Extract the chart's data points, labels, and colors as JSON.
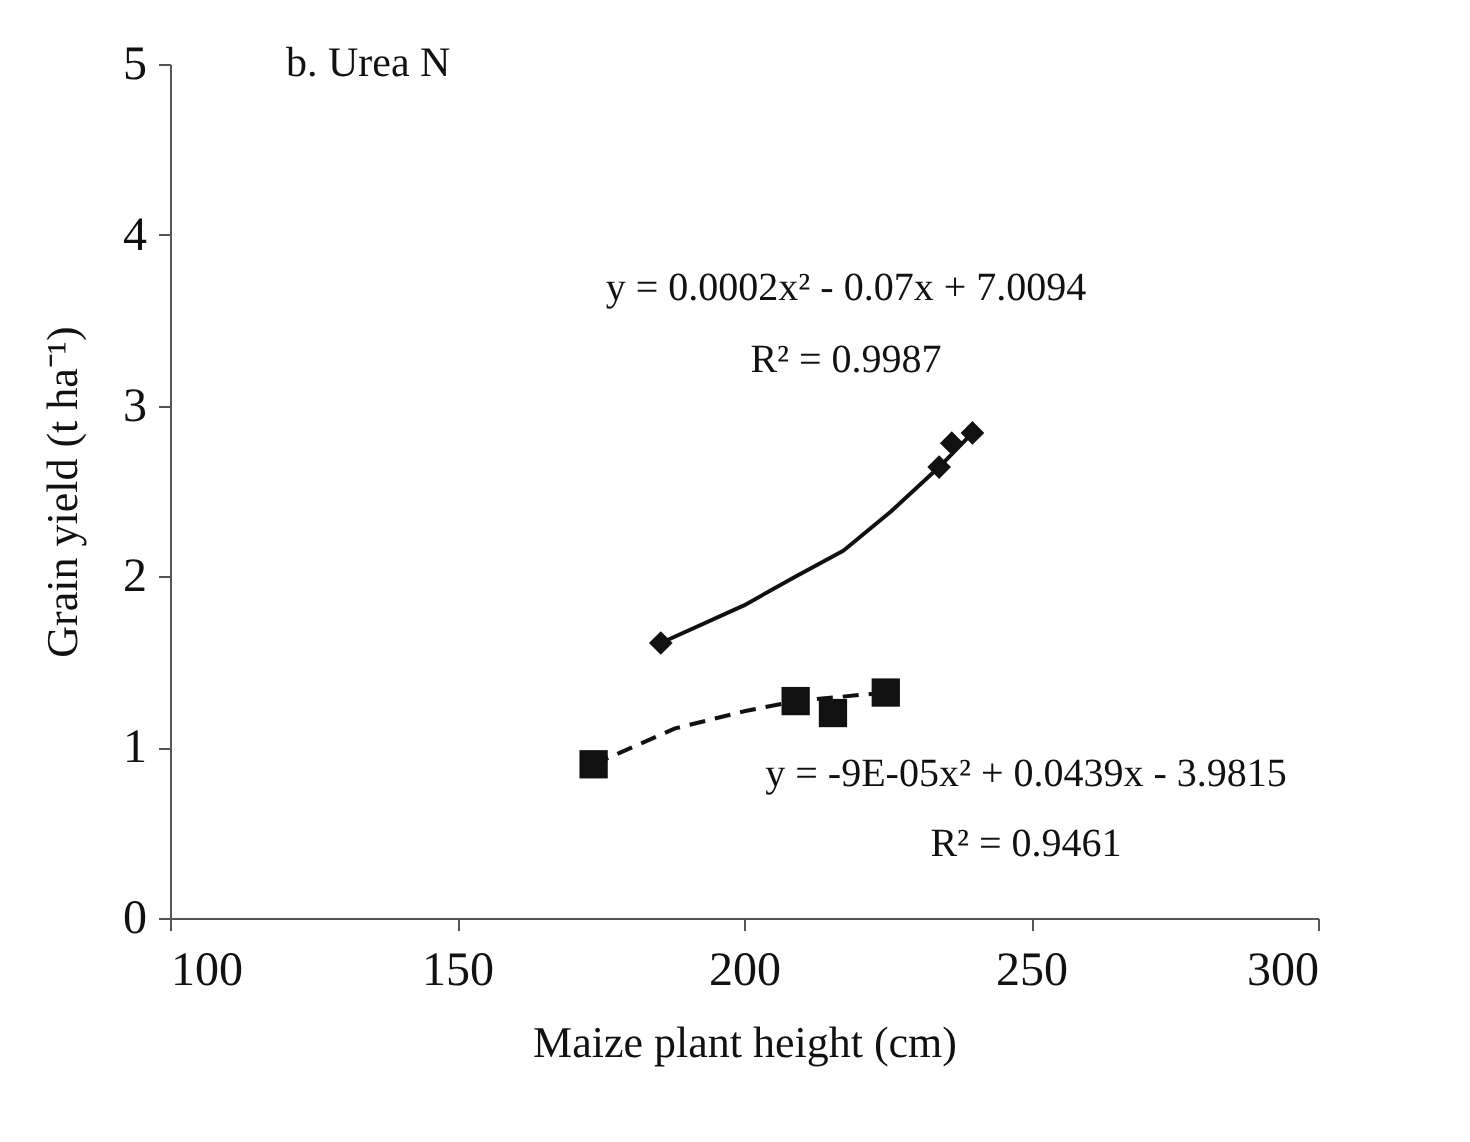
{
  "chart_data": {
    "type": "scatter",
    "title": "b. Urea N",
    "xlabel": "Maize plant height (cm)",
    "ylabel": "Grain yield (t ha⁻¹)",
    "xlim": [
      100,
      300
    ],
    "xticks": [
      100,
      150,
      200,
      250,
      300
    ],
    "ylim": [
      0,
      5
    ],
    "yticks": [
      0,
      1,
      2,
      3,
      4,
      5
    ],
    "series": [
      {
        "marker": "diamond",
        "color": "#111111",
        "x": [
          185.5,
          234,
          236.2,
          239.8
        ],
        "values": [
          1.61,
          2.64,
          2.78,
          2.84
        ]
      },
      {
        "marker": "square",
        "color": "#111111",
        "x": [
          173.8,
          209,
          215.5,
          224.7
        ],
        "values": [
          0.9,
          1.27,
          1.2,
          1.32
        ]
      },
      {
        "type": "line",
        "line_style": "solid",
        "marker": "none",
        "color": "#111111",
        "x": [
          185.5,
          200,
          209,
          217.3,
          225.6,
          234,
          239.8
        ],
        "values": [
          1.61,
          1.83,
          2.0,
          2.15,
          2.38,
          2.64,
          2.84
        ]
      },
      {
        "type": "line",
        "line_style": "dashed",
        "marker": "none",
        "color": "#111111",
        "x": [
          173.8,
          188,
          200,
          209,
          224.7
        ],
        "values": [
          0.9,
          1.11,
          1.21,
          1.27,
          1.32
        ]
      }
    ],
    "annotations": [
      "y = 0.0002x² - 0.07x + 7.0094",
      "R² = 0.9987",
      "y = -9E-05x² + 0.0439x - 3.9815",
      "R² = 0.9461"
    ]
  }
}
